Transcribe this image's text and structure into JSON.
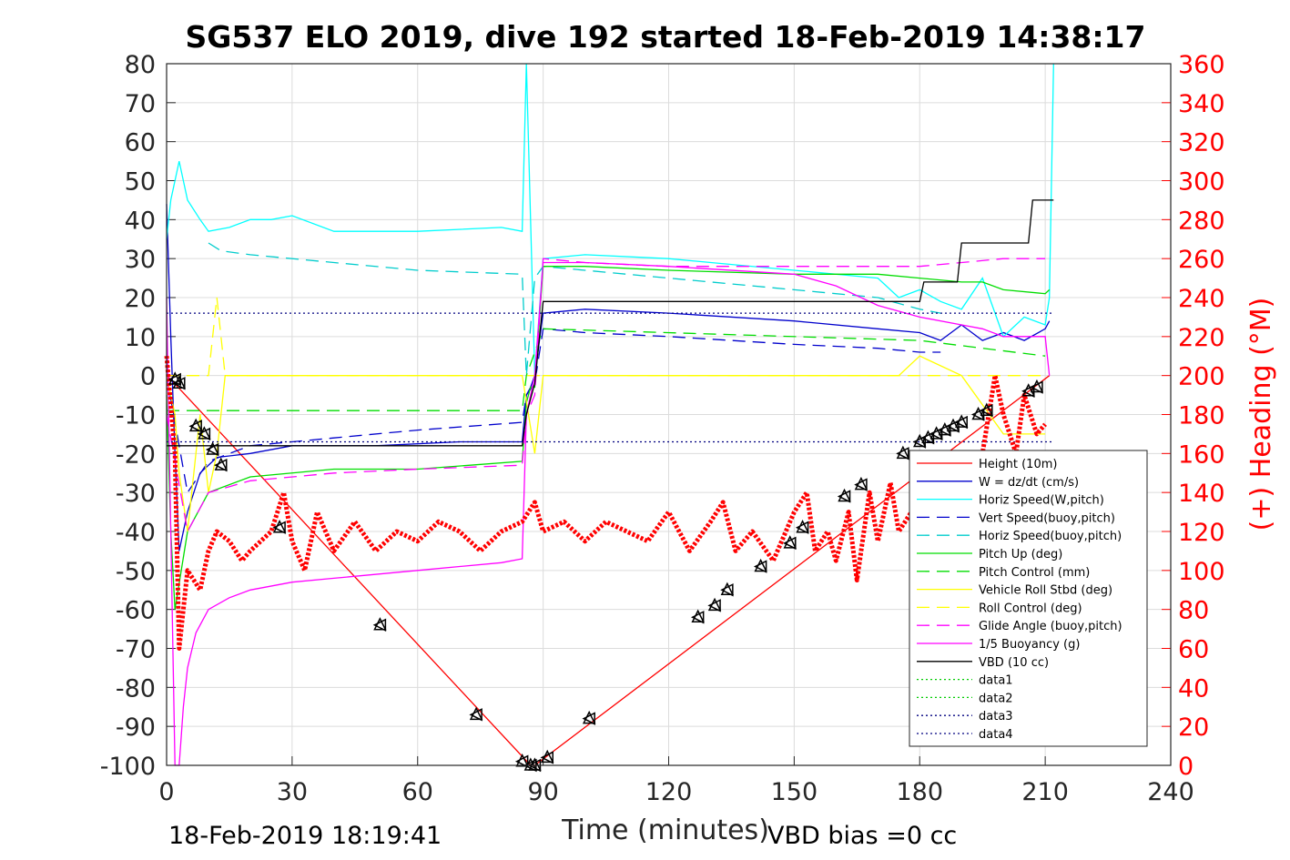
{
  "title": "SG537 ELO 2019, dive 192 started 18-Feb-2019 14:38:17",
  "footer_left": "18-Feb-2019 18:19:41",
  "footer_right": "VBD bias =0 cc",
  "chart_data": {
    "type": "line",
    "title": "SG537 ELO 2019, dive 192 started 18-Feb-2019 14:38:17",
    "xlabel": "Time (minutes)",
    "ylabel": "",
    "y2label": "(+) Heading (°M)",
    "xlim": [
      0,
      240
    ],
    "ylim": [
      -100,
      80
    ],
    "y2lim": [
      0,
      360
    ],
    "xticks": [
      0,
      30,
      60,
      90,
      120,
      150,
      180,
      210,
      240
    ],
    "yticks": [
      80,
      70,
      60,
      50,
      40,
      30,
      20,
      10,
      0,
      -10,
      -20,
      -30,
      -40,
      -50,
      -60,
      -70,
      -80,
      -90,
      -100
    ],
    "y2ticks": [
      360,
      340,
      320,
      300,
      280,
      260,
      240,
      220,
      200,
      180,
      160,
      140,
      120,
      100,
      80,
      60,
      40,
      20,
      0
    ],
    "grid": true,
    "legend_position": "lower-right",
    "colors": {
      "height": "#ff0000",
      "w": "#0000cc",
      "horiz_w": "#00ffff",
      "vert_buoy": "#0000cc",
      "horiz_buoy": "#00cccc",
      "pitch_up": "#00dd00",
      "pitch_control": "#00dd00",
      "roll": "#ffff00",
      "roll_control": "#ffff00",
      "glide": "#ff00ff",
      "buoy": "#ff00ff",
      "vbd": "#000000",
      "heading": "#ff0000",
      "data3": "#000080",
      "data4": "#000080"
    },
    "series": [
      {
        "name": "Height (10m)",
        "x": [
          0,
          1,
          87,
          88,
          211
        ],
        "y": [
          0,
          -1,
          -100,
          -100,
          0
        ]
      },
      {
        "name": "W = dz/dt (cm/s)",
        "x": [
          0,
          1,
          2,
          3,
          5,
          8,
          12,
          20,
          30,
          50,
          70,
          85,
          86,
          87,
          88,
          90,
          100,
          120,
          150,
          170,
          180,
          185,
          190,
          195,
          200,
          205,
          210,
          211
        ],
        "y": [
          44,
          10,
          -20,
          -45,
          -35,
          -25,
          -21,
          -20,
          -18,
          -18,
          -17,
          -17,
          -5,
          -3,
          0,
          16,
          17,
          16,
          14,
          12,
          11,
          9,
          13,
          9,
          11,
          9,
          12,
          14
        ]
      },
      {
        "name": "Horiz Speed(W,pitch)",
        "x": [
          0,
          1,
          2,
          3,
          5,
          8,
          10,
          15,
          20,
          25,
          30,
          40,
          60,
          80,
          85,
          86,
          87,
          88,
          90,
          100,
          120,
          150,
          170,
          175,
          180,
          185,
          190,
          195,
          200,
          205,
          210,
          211,
          212
        ],
        "y": [
          35,
          45,
          50,
          55,
          45,
          40,
          37,
          38,
          40,
          40,
          41,
          37,
          37,
          38,
          37,
          80,
          40,
          0,
          30,
          31,
          30,
          27,
          25,
          20,
          22,
          19,
          17,
          25,
          10,
          15,
          13,
          20,
          80
        ]
      },
      {
        "name": "Vert Speed(buoy,pitch)",
        "x": [
          0,
          5,
          10,
          20,
          40,
          60,
          85,
          86,
          88,
          90,
          100,
          120,
          150,
          170,
          180,
          185
        ],
        "y": [
          0,
          -30,
          -22,
          -18,
          -16,
          -14,
          -12,
          -5,
          -2,
          12,
          11,
          10,
          8,
          7,
          6,
          6
        ]
      },
      {
        "name": "Horiz Speed(buoy,pitch)",
        "x": [
          10,
          13,
          20,
          40,
          60,
          85,
          86,
          88,
          90,
          100,
          120,
          150,
          170,
          180,
          185
        ],
        "y": [
          34,
          32,
          31,
          29,
          27,
          26,
          0,
          25,
          28,
          27,
          25,
          22,
          20,
          17,
          16
        ]
      },
      {
        "name": "Pitch Up (deg)",
        "x": [
          0,
          1,
          2,
          5,
          10,
          20,
          40,
          60,
          85,
          86,
          87,
          88,
          90,
          100,
          120,
          150,
          170,
          180,
          190,
          195,
          200,
          210,
          211
        ],
        "y": [
          -5,
          -40,
          -60,
          -40,
          -30,
          -26,
          -24,
          -24,
          -22,
          -7,
          -3,
          -3,
          28,
          28,
          27,
          26,
          26,
          25,
          24,
          24,
          22,
          21,
          22
        ]
      },
      {
        "name": "Pitch Control (mm)",
        "x": [
          0,
          2,
          10,
          85,
          86,
          90,
          180,
          210
        ],
        "y": [
          -9,
          -9,
          -9,
          -9,
          0,
          12,
          9,
          5
        ]
      },
      {
        "name": "Vehicle Roll Stbd (deg)",
        "x": [
          0,
          2,
          3,
          5,
          8,
          10,
          12,
          14,
          20,
          30,
          50,
          75,
          85,
          88,
          90,
          100,
          120,
          150,
          175,
          180,
          190,
          200,
          210
        ],
        "y": [
          0,
          -10,
          -25,
          -40,
          -10,
          -30,
          -20,
          0,
          0,
          0,
          0,
          0,
          0,
          -20,
          0,
          0,
          0,
          0,
          0,
          5,
          0,
          -15,
          -15
        ]
      },
      {
        "name": "Roll Control (deg)",
        "x": [
          0,
          10,
          12,
          14,
          90,
          210
        ],
        "y": [
          0,
          0,
          20,
          0,
          0,
          0
        ]
      },
      {
        "name": "Glide Angle (buoy,pitch)",
        "x": [
          0,
          5,
          10,
          20,
          40,
          60,
          85,
          86,
          88,
          90,
          100,
          120,
          150,
          170,
          180,
          190,
          200,
          210
        ],
        "y": [
          -10,
          -40,
          -30,
          -27,
          -25,
          -24,
          -23,
          -10,
          -5,
          30,
          29,
          28,
          28,
          28,
          28,
          29,
          30,
          30
        ]
      },
      {
        "name": "1/5 Buoyancy (g)",
        "x": [
          0,
          1,
          2,
          3,
          4,
          5,
          7,
          10,
          15,
          20,
          30,
          40,
          60,
          80,
          85,
          86,
          88,
          90,
          100,
          120,
          150,
          160,
          170,
          180,
          190,
          195,
          200,
          205,
          210,
          211
        ],
        "y": [
          20,
          -40,
          -100,
          -100,
          -85,
          -75,
          -66,
          -60,
          -57,
          -55,
          -53,
          -52,
          -50,
          -48,
          -47,
          -10,
          0,
          29,
          29,
          28,
          26,
          23,
          18,
          15,
          13,
          12,
          10,
          10,
          10,
          0
        ]
      },
      {
        "name": "VBD (10 cc)",
        "x": [
          0,
          2,
          3,
          85,
          86,
          88,
          90,
          180,
          181,
          189,
          190,
          198,
          199,
          206,
          207,
          212
        ],
        "y": [
          -18,
          -18,
          -18,
          -18,
          -10,
          -2,
          19,
          19,
          24,
          24,
          34,
          34,
          34,
          34,
          45,
          45
        ]
      },
      {
        "name": "data1",
        "x": [],
        "y": []
      },
      {
        "name": "data2",
        "x": [],
        "y": []
      },
      {
        "name": "data3",
        "x": [
          0,
          212
        ],
        "y": [
          16,
          16
        ]
      },
      {
        "name": "data4",
        "x": [
          0,
          212
        ],
        "y": [
          -17,
          -17
        ]
      }
    ],
    "heading_series": {
      "axis": "right",
      "x": [
        0,
        2,
        3,
        5,
        8,
        10,
        12,
        15,
        18,
        20,
        25,
        28,
        30,
        33,
        36,
        40,
        45,
        50,
        55,
        60,
        65,
        70,
        75,
        80,
        85,
        88,
        90,
        95,
        100,
        105,
        110,
        115,
        120,
        125,
        130,
        133,
        136,
        140,
        145,
        150,
        153,
        155,
        158,
        160,
        163,
        165,
        168,
        170,
        173,
        175,
        178,
        180,
        185,
        190,
        195,
        198,
        200,
        203,
        205,
        208,
        210
      ],
      "y": [
        210,
        160,
        60,
        100,
        90,
        110,
        120,
        115,
        105,
        110,
        120,
        140,
        115,
        100,
        130,
        110,
        125,
        110,
        120,
        115,
        125,
        120,
        110,
        120,
        125,
        135,
        120,
        125,
        115,
        125,
        120,
        115,
        130,
        110,
        125,
        135,
        110,
        120,
        105,
        130,
        140,
        110,
        120,
        105,
        130,
        95,
        140,
        115,
        145,
        120,
        130,
        115,
        135,
        145,
        160,
        200,
        180,
        160,
        190,
        170,
        175
      ]
    },
    "markers": {
      "x": [
        2,
        3,
        7,
        9,
        11,
        13,
        27,
        51,
        74,
        85,
        87,
        88,
        91,
        101,
        127,
        131,
        134,
        142,
        149,
        152,
        162,
        166,
        176,
        180,
        182,
        184,
        186,
        188,
        190,
        194,
        196,
        206,
        208
      ],
      "y": [
        -1,
        -2,
        -13,
        -15,
        -19,
        -23,
        -39,
        -64,
        -87,
        -99,
        -100,
        -100,
        -98,
        -88,
        -62,
        -59,
        -55,
        -49,
        -43,
        -39,
        -31,
        -28,
        -20,
        -17,
        -16,
        -15,
        -14,
        -13,
        -12,
        -10,
        -9,
        -4,
        -3
      ]
    }
  }
}
